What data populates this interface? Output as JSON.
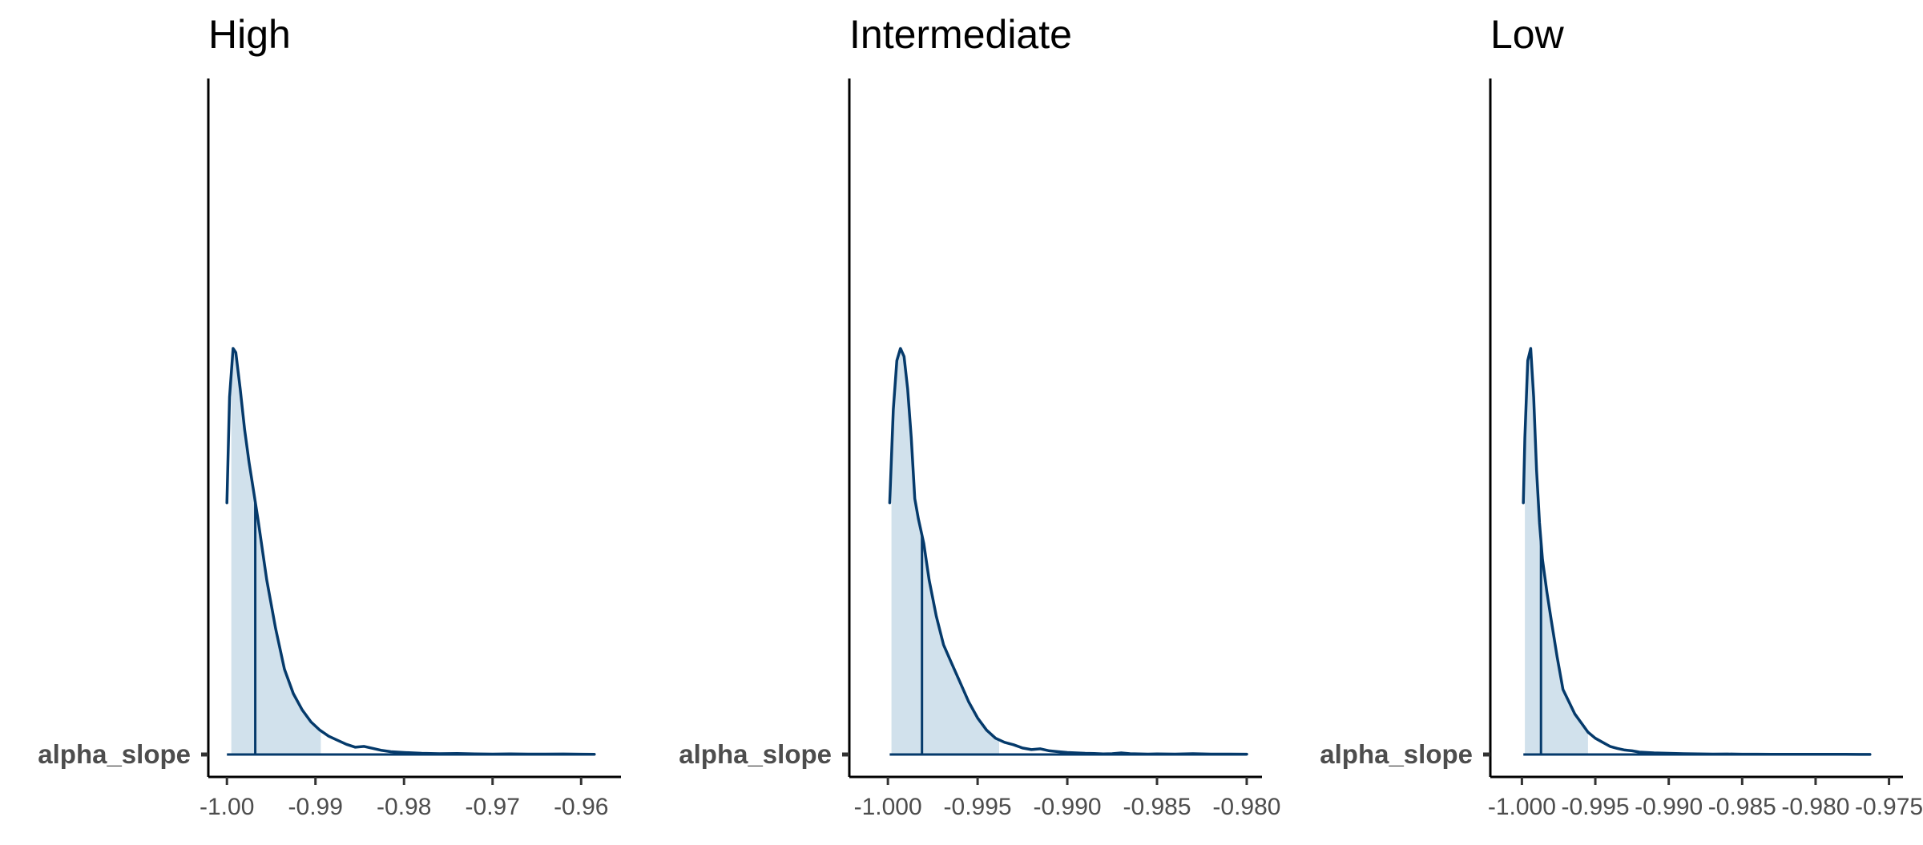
{
  "chart_data": [
    {
      "type": "area",
      "title": "High",
      "row_label": "alpha_slope",
      "xlim": [
        -1.0021,
        -0.9555
      ],
      "x_ticks": [
        -1.0,
        -0.99,
        -0.98,
        -0.97,
        -0.96
      ],
      "x_tick_labels": [
        "-1.00",
        "-0.99",
        "-0.98",
        "-0.97",
        "-0.96"
      ],
      "density": {
        "x": [
          -1.0,
          -0.9997,
          -0.9993,
          -0.999,
          -0.9985,
          -0.998,
          -0.9975,
          -0.997,
          -0.9965,
          -0.9955,
          -0.9945,
          -0.9935,
          -0.9925,
          -0.9915,
          -0.9905,
          -0.9895,
          -0.9885,
          -0.9875,
          -0.9865,
          -0.9855,
          -0.9845,
          -0.9835,
          -0.9825,
          -0.9815,
          -0.98,
          -0.978,
          -0.976,
          -0.974,
          -0.972,
          -0.97,
          -0.968,
          -0.966,
          -0.964,
          -0.962,
          -0.96,
          -0.9585
        ],
        "y": [
          0.62,
          0.88,
          1.0,
          0.99,
          0.9,
          0.8,
          0.72,
          0.65,
          0.58,
          0.43,
          0.31,
          0.21,
          0.15,
          0.11,
          0.08,
          0.06,
          0.045,
          0.035,
          0.025,
          0.018,
          0.02,
          0.015,
          0.01,
          0.007,
          0.005,
          0.003,
          0.002,
          0.0025,
          0.0015,
          0.001,
          0.0015,
          0.001,
          0.001,
          0.0012,
          0.0008,
          0.0006
        ]
      },
      "interval": [
        -0.9995,
        -0.9894
      ],
      "point_estimate": -0.9968
    },
    {
      "type": "area",
      "title": "Intermediate",
      "row_label": "alpha_slope",
      "xlim": [
        -1.00215,
        -0.97915
      ],
      "x_ticks": [
        -1.0,
        -0.995,
        -0.99,
        -0.985,
        -0.98
      ],
      "x_tick_labels": [
        "-1.000",
        "-0.995",
        "-0.990",
        "-0.985",
        "-0.980"
      ],
      "density": {
        "x": [
          -0.9999,
          -0.9997,
          -0.9995,
          -0.9993,
          -0.9991,
          -0.9989,
          -0.9987,
          -0.9985,
          -0.9983,
          -0.998,
          -0.9977,
          -0.9973,
          -0.9969,
          -0.9965,
          -0.996,
          -0.9955,
          -0.995,
          -0.9945,
          -0.994,
          -0.9935,
          -0.993,
          -0.9925,
          -0.992,
          -0.9915,
          -0.991,
          -0.9905,
          -0.99,
          -0.9895,
          -0.989,
          -0.9885,
          -0.988,
          -0.9875,
          -0.987,
          -0.9865,
          -0.986,
          -0.9855,
          -0.985,
          -0.984,
          -0.983,
          -0.982,
          -0.981,
          -0.98
        ],
        "y": [
          0.62,
          0.85,
          0.97,
          1.0,
          0.98,
          0.9,
          0.78,
          0.63,
          0.58,
          0.52,
          0.43,
          0.34,
          0.27,
          0.23,
          0.18,
          0.13,
          0.09,
          0.06,
          0.04,
          0.03,
          0.024,
          0.016,
          0.012,
          0.014,
          0.009,
          0.007,
          0.005,
          0.004,
          0.003,
          0.0025,
          0.0015,
          0.002,
          0.004,
          0.002,
          0.0015,
          0.001,
          0.0015,
          0.001,
          0.002,
          0.001,
          0.001,
          0.0008
        ]
      },
      "interval": [
        -0.9998,
        -0.9938
      ],
      "point_estimate": -0.9981
    },
    {
      "type": "area",
      "title": "Low",
      "row_label": "alpha_slope",
      "xlim": [
        -1.00215,
        -0.97405
      ],
      "x_ticks": [
        -1.0,
        -0.995,
        -0.99,
        -0.985,
        -0.98,
        -0.975
      ],
      "x_tick_labels": [
        "-1.000",
        "-0.995",
        "-0.990",
        "-0.985",
        "-0.980",
        "-0.975"
      ],
      "density": {
        "x": [
          -0.9999,
          -0.9998,
          -0.9996,
          -0.9994,
          -0.9992,
          -0.999,
          -0.9988,
          -0.9986,
          -0.9983,
          -0.998,
          -0.9976,
          -0.9972,
          -0.9968,
          -0.9964,
          -0.996,
          -0.9955,
          -0.995,
          -0.9945,
          -0.994,
          -0.9935,
          -0.993,
          -0.9925,
          -0.992,
          -0.991,
          -0.99,
          -0.989,
          -0.988,
          -0.987,
          -0.986,
          -0.985,
          -0.984,
          -0.983,
          -0.982,
          -0.981,
          -0.98,
          -0.979,
          -0.978,
          -0.977,
          -0.9763
        ],
        "y": [
          0.62,
          0.78,
          0.97,
          1.0,
          0.88,
          0.7,
          0.57,
          0.48,
          0.4,
          0.33,
          0.24,
          0.16,
          0.13,
          0.1,
          0.08,
          0.055,
          0.04,
          0.03,
          0.02,
          0.015,
          0.011,
          0.009,
          0.006,
          0.004,
          0.003,
          0.002,
          0.0015,
          0.001,
          0.0012,
          0.0008,
          0.0007,
          0.0006,
          0.0005,
          0.0004,
          0.0004,
          0.0003,
          0.0003,
          0.0002,
          0.0002
        ]
      },
      "interval": [
        -0.9998,
        -0.9955
      ],
      "point_estimate": -0.9987
    }
  ]
}
